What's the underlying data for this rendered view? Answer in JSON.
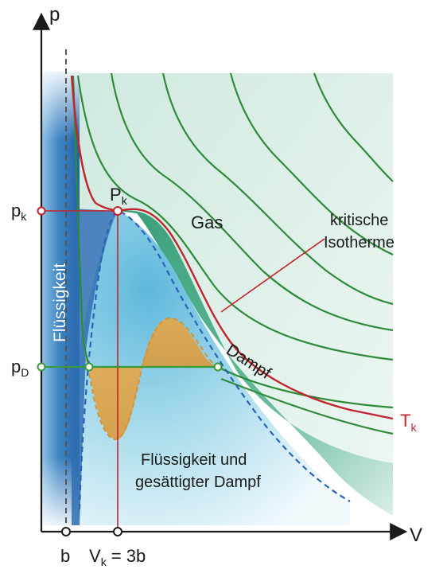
{
  "axes": {
    "y_label": "p",
    "x_label": "V"
  },
  "pressure_labels": {
    "pk_main": "p",
    "pk_sub": "k",
    "pd_main": "p",
    "pd_sub": "D"
  },
  "volume_labels": {
    "b": "b",
    "vk_main": "V",
    "vk_sub": "k",
    "vk_rest": " = 3b"
  },
  "critical_point": {
    "main": "P",
    "sub": "k"
  },
  "regions": {
    "liquid": "Flüssigkeit",
    "gas": "Gas",
    "vapor": "Dampf",
    "mixture_line1": "Flüssigkeit und",
    "mixture_line2": "gesättigter Dampf"
  },
  "annotations": {
    "critical_isotherm_line1": "kritische",
    "critical_isotherm_line2": "Isotherme",
    "tk_main": "T",
    "tk_sub": "k"
  },
  "colors": {
    "liquid_blue": "#2a6fb0",
    "mixture_light_blue": "#7cc4e0",
    "gas_pale_green": "#d7ece5",
    "vapor_green": "#3ea57e",
    "isotherm_green": "#2e8b3a",
    "critical_red": "#c0262d",
    "area_orange": "#e0a24a",
    "dashed_blue": "#2a63b8"
  }
}
